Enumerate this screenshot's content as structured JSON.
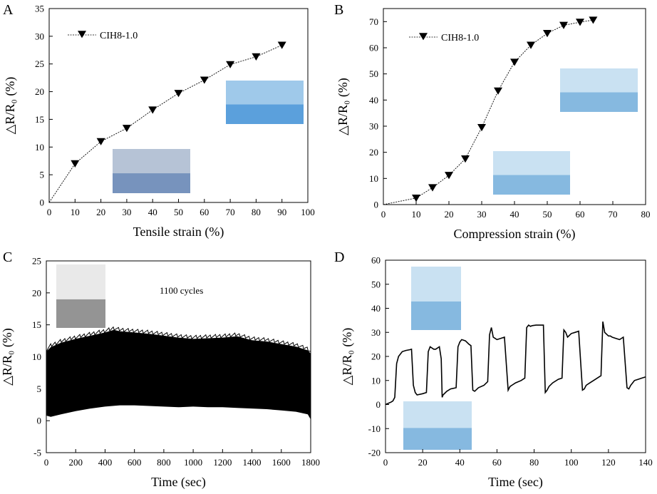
{
  "chart_data": [
    {
      "panel": "A",
      "type": "line",
      "xlabel": "Tensile strain (%)",
      "ylabel": "△R/R₀ (%)",
      "xlim": [
        0,
        100
      ],
      "ylim": [
        0,
        35
      ],
      "xticks": [
        0,
        10,
        20,
        30,
        40,
        50,
        60,
        70,
        80,
        90,
        100
      ],
      "yticks": [
        0,
        5,
        10,
        15,
        20,
        25,
        30,
        35
      ],
      "legend": "top-left",
      "line": {
        "x": [
          0,
          10,
          20,
          30,
          40,
          50,
          60,
          70,
          80,
          90
        ],
        "y": [
          0,
          7.0,
          11.0,
          13.4,
          16.7,
          19.7,
          22.1,
          24.9,
          26.3,
          28.4
        ]
      },
      "series": [
        {
          "name": "CIH8-1.0",
          "marker": "down-triangle",
          "color": "#000000",
          "x": [
            10,
            20,
            30,
            40,
            50,
            60,
            70,
            80,
            90
          ],
          "y": [
            7.0,
            11.0,
            13.4,
            16.7,
            19.7,
            22.1,
            24.9,
            26.3,
            28.4
          ]
        }
      ],
      "insets": [
        "photo-of-stretched-gel-with-led-dim",
        "photo-of-unstretched-gel-with-led-bright"
      ]
    },
    {
      "panel": "B",
      "type": "line",
      "xlabel": "Compression strain (%)",
      "ylabel": "△R/R₀ (%)",
      "xlim": [
        0,
        80
      ],
      "ylim": [
        0,
        75
      ],
      "xticks": [
        0,
        10,
        20,
        30,
        40,
        50,
        60,
        70,
        80
      ],
      "yticks": [
        0,
        10,
        20,
        30,
        40,
        50,
        60,
        70
      ],
      "legend": "top-left",
      "line": {
        "x": [
          0,
          10,
          15,
          20,
          25,
          30,
          35,
          40,
          45,
          50,
          55,
          60,
          64
        ],
        "y": [
          0,
          2.5,
          6.5,
          11.2,
          17.5,
          29.5,
          43.5,
          54.5,
          61.0,
          65.5,
          68.6,
          69.8,
          70.6
        ]
      },
      "series": [
        {
          "name": "CIH8-1.0",
          "marker": "down-triangle",
          "color": "#000000",
          "x": [
            10,
            15,
            20,
            25,
            30,
            35,
            40,
            45,
            50,
            55,
            60,
            64
          ],
          "y": [
            2.5,
            6.5,
            11.2,
            17.5,
            29.5,
            43.5,
            54.5,
            61.0,
            65.5,
            68.6,
            69.8,
            70.6
          ]
        }
      ],
      "insets": [
        "photo-of-compressed-gel-with-led",
        "photo-of-gel-cylinder-with-led"
      ]
    },
    {
      "panel": "C",
      "type": "area",
      "xlabel": "Time (sec)",
      "ylabel": "△R/R₀ (%)",
      "xlim": [
        0,
        1800
      ],
      "ylim": [
        -5,
        25
      ],
      "xticks": [
        0,
        200,
        400,
        600,
        800,
        1000,
        1200,
        1400,
        1600,
        1800
      ],
      "yticks": [
        -5,
        0,
        5,
        10,
        15,
        20,
        25
      ],
      "annotation": "1100 cycles",
      "upper_envelope": {
        "x": [
          0,
          30,
          100,
          200,
          300,
          400,
          460,
          500,
          600,
          700,
          800,
          900,
          1000,
          1100,
          1200,
          1300,
          1400,
          1500,
          1600,
          1700,
          1780,
          1800
        ],
        "y": [
          10.8,
          11.5,
          12.2,
          12.8,
          13.3,
          13.8,
          14.2,
          14.0,
          13.8,
          13.6,
          13.3,
          13.0,
          12.8,
          12.9,
          13.0,
          13.2,
          12.6,
          12.4,
          12.0,
          11.6,
          11.0,
          10.5
        ]
      },
      "lower_envelope": {
        "x": [
          0,
          30,
          100,
          200,
          300,
          400,
          500,
          600,
          700,
          800,
          900,
          1000,
          1100,
          1200,
          1300,
          1400,
          1500,
          1600,
          1700,
          1780,
          1800
        ],
        "y": [
          0.8,
          0.6,
          1.0,
          1.5,
          1.9,
          2.2,
          2.4,
          2.4,
          2.3,
          2.2,
          2.1,
          2.2,
          2.1,
          2.1,
          2.0,
          1.9,
          1.8,
          1.6,
          1.4,
          1.0,
          0.2
        ]
      },
      "insets": [
        "photo-of-sample-in-tensile-clamps"
      ]
    },
    {
      "panel": "D",
      "type": "line",
      "xlabel": "Time (sec)",
      "ylabel": "△R/R₀ (%)",
      "xlim": [
        0,
        140
      ],
      "ylim": [
        -20,
        60
      ],
      "xticks": [
        0,
        20,
        40,
        60,
        80,
        100,
        120,
        140
      ],
      "yticks": [
        -20,
        -10,
        0,
        10,
        20,
        30,
        40,
        50,
        60
      ],
      "series": [
        {
          "name": "",
          "color": "#000000",
          "x": [
            0,
            3,
            4,
            5,
            6,
            7,
            9,
            11,
            13,
            14,
            15,
            16,
            17,
            20,
            22,
            23,
            24,
            25,
            26,
            27,
            28,
            29,
            30,
            30.5,
            31,
            33,
            35,
            38,
            39,
            40,
            41,
            43,
            45,
            46,
            47,
            48,
            50,
            53,
            55,
            56,
            57,
            58,
            59,
            60,
            62,
            64,
            66,
            67,
            68,
            70,
            73,
            75,
            76,
            77,
            78,
            79,
            81,
            83,
            85,
            86,
            87,
            88,
            90,
            93,
            95,
            96,
            97,
            98,
            100,
            102,
            104,
            106,
            107,
            108,
            110,
            113,
            115,
            116,
            117,
            118,
            120,
            121,
            122,
            124,
            126,
            128,
            130,
            131,
            132,
            133,
            134,
            136,
            138,
            140
          ],
          "y": [
            0,
            1,
            1.5,
            3,
            17,
            20,
            22,
            22.5,
            22.8,
            23,
            8,
            5,
            4,
            4.5,
            5,
            22,
            24,
            23.5,
            23,
            23,
            23.5,
            24,
            19,
            3,
            4,
            5.5,
            6.5,
            7,
            24,
            26,
            27,
            26.5,
            25,
            24.5,
            6,
            5.5,
            7,
            8,
            9.5,
            29,
            32,
            28,
            27.5,
            27,
            27.5,
            28,
            6,
            7.5,
            8,
            9,
            10,
            11,
            32,
            33,
            32.5,
            32.8,
            33,
            33,
            33,
            5,
            6,
            7.5,
            9,
            10.5,
            11,
            31,
            30,
            28,
            29.5,
            30,
            30.5,
            6,
            6.5,
            8,
            9,
            10.5,
            11.5,
            12,
            34.5,
            30,
            28.5,
            28.5,
            28,
            27.5,
            27,
            28,
            7,
            6.5,
            8,
            9,
            10,
            10.5,
            11,
            11.5
          ]
        }
      ],
      "insets": [
        "photo-of-sensor-on-bent-wrist",
        "photo-of-sensor-on-straight-wrist"
      ]
    }
  ]
}
